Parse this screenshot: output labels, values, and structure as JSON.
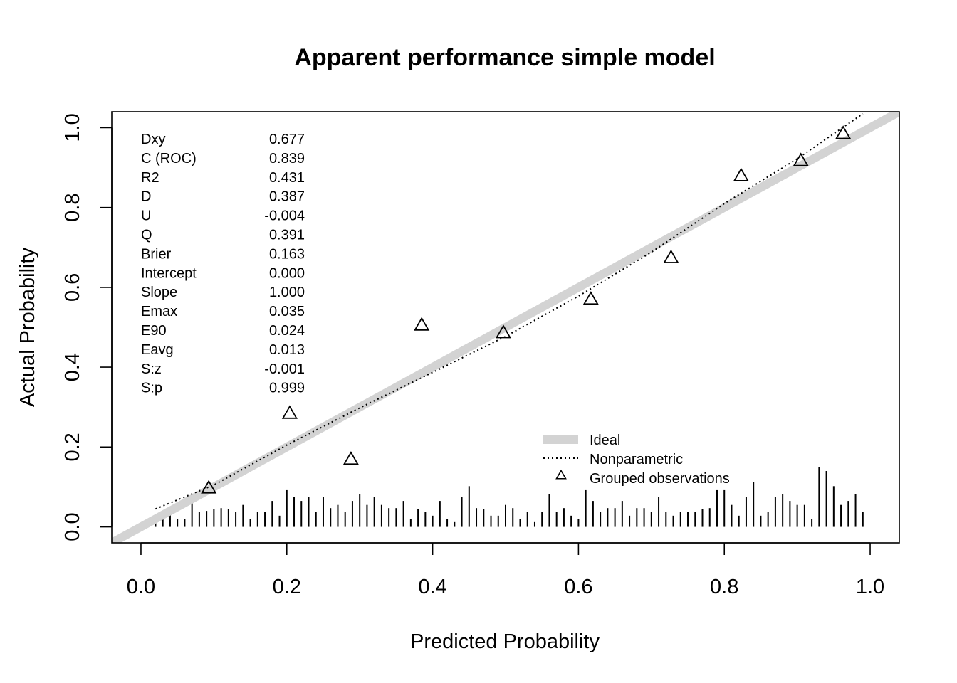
{
  "chart_data": {
    "type": "scatter",
    "title": "Apparent performance simple model",
    "xlabel": "Predicted Probability",
    "ylabel": "Actual Probability",
    "xlim": [
      -0.04,
      1.04
    ],
    "ylim": [
      -0.04,
      1.04
    ],
    "x_ticks": [
      "0.0",
      "0.2",
      "0.4",
      "0.6",
      "0.8",
      "1.0"
    ],
    "y_ticks": [
      "0.0",
      "0.2",
      "0.4",
      "0.6",
      "0.8",
      "1.0"
    ],
    "grid": false,
    "stats": [
      {
        "label": "Dxy",
        "value": "0.677"
      },
      {
        "label": "C (ROC)",
        "value": "0.839"
      },
      {
        "label": "R2",
        "value": "0.431"
      },
      {
        "label": "D",
        "value": "0.387"
      },
      {
        "label": "U",
        "value": "-0.004"
      },
      {
        "label": "Q",
        "value": "0.391"
      },
      {
        "label": "Brier",
        "value": "0.163"
      },
      {
        "label": "Intercept",
        "value": "0.000"
      },
      {
        "label": "Slope",
        "value": "1.000"
      },
      {
        "label": "Emax",
        "value": "0.035"
      },
      {
        "label": "E90",
        "value": "0.024"
      },
      {
        "label": "Eavg",
        "value": "0.013"
      },
      {
        "label": "S:z",
        "value": "-0.001"
      },
      {
        "label": "S:p",
        "value": "0.999"
      }
    ],
    "legend": {
      "position": "bottom-right",
      "items": [
        "Ideal",
        "Nonparametric",
        "Grouped observations"
      ]
    },
    "series": [
      {
        "name": "Ideal",
        "kind": "line",
        "color": "#d3d3d3",
        "x": [
          -0.04,
          1.04
        ],
        "y": [
          -0.04,
          1.04
        ]
      },
      {
        "name": "Nonparametric",
        "kind": "dotted-line",
        "color": "#000000",
        "x": [
          0.02,
          0.1,
          0.2,
          0.3,
          0.4,
          0.5,
          0.6,
          0.7,
          0.8,
          0.9,
          0.99
        ],
        "y": [
          0.045,
          0.105,
          0.205,
          0.298,
          0.387,
          0.477,
          0.578,
          0.688,
          0.81,
          0.922,
          1.035
        ]
      },
      {
        "name": "Grouped observations",
        "kind": "triangles",
        "color": "#000000",
        "x": [
          0.093,
          0.204,
          0.288,
          0.385,
          0.497,
          0.617,
          0.727,
          0.823,
          0.905,
          0.963
        ],
        "y": [
          0.095,
          0.282,
          0.167,
          0.503,
          0.484,
          0.568,
          0.672,
          0.877,
          0.915,
          0.983
        ]
      }
    ],
    "rug": {
      "x": [
        0.02,
        0.03,
        0.04,
        0.05,
        0.06,
        0.07,
        0.08,
        0.09,
        0.1,
        0.11,
        0.12,
        0.13,
        0.14,
        0.15,
        0.16,
        0.17,
        0.18,
        0.19,
        0.2,
        0.21,
        0.22,
        0.23,
        0.24,
        0.25,
        0.26,
        0.27,
        0.28,
        0.29,
        0.3,
        0.31,
        0.32,
        0.33,
        0.34,
        0.35,
        0.36,
        0.37,
        0.38,
        0.39,
        0.4,
        0.41,
        0.42,
        0.43,
        0.44,
        0.45,
        0.46,
        0.47,
        0.48,
        0.49,
        0.5,
        0.51,
        0.52,
        0.53,
        0.54,
        0.55,
        0.56,
        0.57,
        0.58,
        0.59,
        0.6,
        0.61,
        0.62,
        0.63,
        0.64,
        0.65,
        0.66,
        0.67,
        0.68,
        0.69,
        0.7,
        0.71,
        0.72,
        0.73,
        0.74,
        0.75,
        0.76,
        0.77,
        0.78,
        0.79,
        0.8,
        0.81,
        0.82,
        0.83,
        0.84,
        0.85,
        0.86,
        0.87,
        0.88,
        0.89,
        0.9,
        0.91,
        0.92,
        0.93,
        0.94,
        0.95,
        0.96,
        0.97,
        0.98,
        0.99
      ],
      "height": [
        0.02,
        0.02,
        0.047,
        0.02,
        0.02,
        0.082,
        0.037,
        0.04,
        0.045,
        0.047,
        0.045,
        0.037,
        0.055,
        0.02,
        0.037,
        0.037,
        0.065,
        0.028,
        0.092,
        0.075,
        0.065,
        0.075,
        0.037,
        0.075,
        0.047,
        0.055,
        0.037,
        0.065,
        0.082,
        0.055,
        0.075,
        0.055,
        0.047,
        0.047,
        0.065,
        0.02,
        0.045,
        0.037,
        0.028,
        0.065,
        0.02,
        0.012,
        0.075,
        0.102,
        0.047,
        0.045,
        0.028,
        0.028,
        0.055,
        0.047,
        0.02,
        0.037,
        0.012,
        0.037,
        0.082,
        0.037,
        0.047,
        0.028,
        0.02,
        0.092,
        0.065,
        0.037,
        0.047,
        0.047,
        0.065,
        0.028,
        0.047,
        0.047,
        0.037,
        0.075,
        0.037,
        0.028,
        0.037,
        0.037,
        0.037,
        0.045,
        0.047,
        0.092,
        0.092,
        0.055,
        0.028,
        0.075,
        0.112,
        0.028,
        0.037,
        0.075,
        0.082,
        0.065,
        0.055,
        0.055,
        0.02,
        0.15,
        0.14,
        0.102,
        0.055,
        0.065,
        0.082,
        0.037
      ]
    }
  }
}
